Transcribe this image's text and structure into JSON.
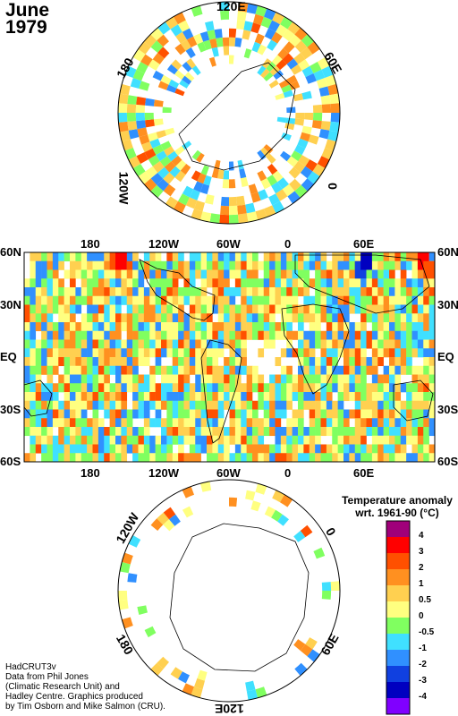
{
  "title": {
    "month": "June",
    "year": "1979"
  },
  "dataset": "HadCRUT3v",
  "credits": [
    "Data from Phil Jones",
    "(Climatic Research Unit) and",
    "Hadley Centre.  Graphics produced",
    "by Tim Osborn and Mike Salmon (CRU)."
  ],
  "north_polar_labels": {
    "top": "120E",
    "right": "60E",
    "bottom_right": "0",
    "left": "180",
    "bottom_left": "120W"
  },
  "south_polar_labels": {
    "left": "120W",
    "right": "0",
    "bottom_left": "180",
    "bottom_right": "60E",
    "bottom": "120E"
  },
  "map_top_labels": [
    "180",
    "120W",
    "60W",
    "0",
    "60E"
  ],
  "map_bottom_labels": [
    "180",
    "120W",
    "60W",
    "0",
    "60E"
  ],
  "map_left_labels": [
    "60N",
    "30N",
    "EQ",
    "30S",
    "60S"
  ],
  "map_right_labels": [
    "60N",
    "30N",
    "EQ",
    "30S",
    "60S"
  ],
  "legend": {
    "title_line1": "Temperature anomaly",
    "title_line2": "wrt. 1961-90  (°C)",
    "ticks": [
      "4",
      "3",
      "2",
      "1",
      "0.5",
      "0",
      "-0.5",
      "-1",
      "-2",
      "-3",
      "-4"
    ],
    "colors": [
      "#a0007a",
      "#ff0000",
      "#ff5000",
      "#ff9020",
      "#ffd050",
      "#ffff80",
      "#80ff60",
      "#40e0ff",
      "#3090ff",
      "#1040e0",
      "#0000c0",
      "#8000ff"
    ]
  }
}
